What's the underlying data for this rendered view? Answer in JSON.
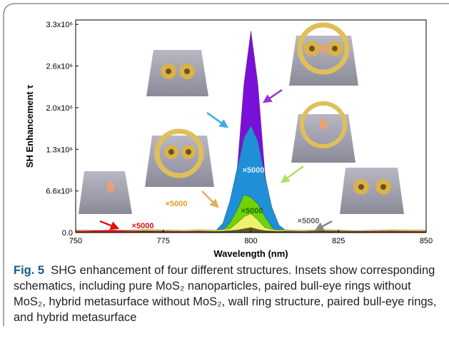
{
  "chart_data": {
    "type": "area",
    "ylabel": "SH Enhancement τ",
    "xlabel": "Wavelength (nm)",
    "x": [
      750,
      760,
      770,
      780,
      785,
      790,
      792,
      794,
      796,
      798,
      800,
      802,
      804,
      806,
      808,
      810,
      815,
      820,
      830,
      840,
      850
    ],
    "series": [
      {
        "color": "#7a10d8",
        "values": [
          5000,
          4000,
          6000,
          5000,
          5000,
          1000,
          23000,
          200000,
          935000,
          2350000,
          3200000,
          2350000,
          935000,
          200000,
          23000,
          1000,
          5000,
          6000,
          4000,
          5000,
          5000
        ]
      },
      {
        "color": "#1f8fd8",
        "values": [
          3000,
          3000,
          3000,
          3000,
          3000,
          30000,
          150000,
          500000,
          1000000,
          1500000,
          1700000,
          1450000,
          900000,
          400000,
          120000,
          30000,
          3000,
          3000,
          3000,
          3000,
          3000
        ]
      },
      {
        "color": "#6fd400",
        "values": [
          10000,
          10000,
          10000,
          10000,
          10000,
          15000,
          40000,
          150000,
          350000,
          600000,
          560000,
          450000,
          250000,
          80000,
          20000,
          15000,
          10000,
          10000,
          10000,
          10000,
          10000
        ]
      },
      {
        "color": "#eef26a",
        "values": [
          40000,
          30000,
          50000,
          35000,
          45000,
          40000,
          50000,
          60000,
          150000,
          250000,
          300000,
          200000,
          80000,
          50000,
          40000,
          45000,
          35000,
          50000,
          30000,
          45000,
          40000
        ]
      },
      {
        "color": "#5b5a22",
        "values": [
          25000,
          20000,
          30000,
          20000,
          25000,
          20000,
          25000,
          30000,
          40000,
          60000,
          80000,
          50000,
          30000,
          25000,
          20000,
          25000,
          20000,
          30000,
          20000,
          25000,
          20000
        ]
      },
      {
        "color": "#e01010",
        "values": [
          20000,
          40000,
          15000,
          20000,
          15000,
          10000,
          10000,
          10000,
          10000,
          10000,
          10000,
          10000,
          10000,
          10000,
          10000,
          10000,
          10000,
          15000,
          10000,
          20000,
          15000
        ]
      }
    ],
    "xlim": [
      750,
      850
    ],
    "xticks": [
      750,
      775,
      800,
      825,
      850
    ],
    "ylim": [
      0,
      3370000
    ],
    "yticks": [
      {
        "value": 0,
        "label": "0.0"
      },
      {
        "value": 660000,
        "label": "6.6x10⁵"
      },
      {
        "value": 1320000,
        "label": "1.3x10⁶"
      },
      {
        "value": 1980000,
        "label": "2.0x10⁶"
      },
      {
        "value": 2640000,
        "label": "2.6x10⁶"
      },
      {
        "value": 3300000,
        "label": "3.3x10⁶"
      }
    ],
    "annotations": [
      "×5000",
      "×5000",
      "×5000",
      "×5000",
      "×5000"
    ]
  },
  "caption": {
    "label": "Fig. 5",
    "text": "SHG enhancement of four different structures. Insets show corresponding schematics, including pure MoS₂ nanoparticles, paired bull-eye rings without MoS₂, hybrid metasurface without MoS₂, wall ring structure, paired bull-eye rings, and hybrid metasurface"
  }
}
